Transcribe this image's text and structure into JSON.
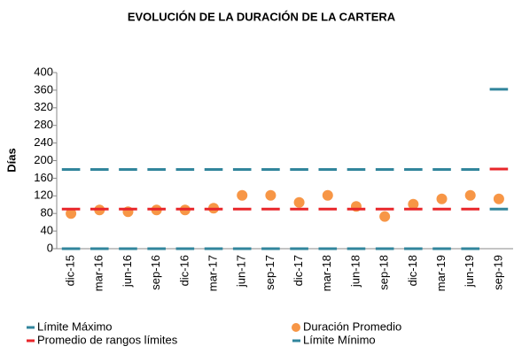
{
  "chart_data": {
    "type": "line",
    "title": "EVOLUCIÓN DE LA DURACIÓN DE LA CARTERA",
    "y_label": "Días",
    "categories": [
      "dic-15",
      "mar-16",
      "jun-16",
      "sep-16",
      "dic-16",
      "mar-17",
      "jun-17",
      "sep-17",
      "dic-17",
      "mar-18",
      "jun-18",
      "sep-18",
      "dic-18",
      "mar-19",
      "jun-19",
      "sep-19"
    ],
    "series": [
      {
        "name": "Límite Máximo",
        "color": "#31859c",
        "marker": "dash",
        "values": [
          180,
          180,
          180,
          180,
          180,
          180,
          180,
          180,
          180,
          180,
          180,
          180,
          180,
          180,
          180,
          362
        ]
      },
      {
        "name": "Duración Promedio",
        "color": "#f79646",
        "marker": "circle",
        "values": [
          80,
          88,
          84,
          88,
          88,
          92,
          121,
          121,
          105,
          121,
          96,
          73,
          101,
          113,
          121,
          113
        ]
      },
      {
        "name": "Promedio de rangos límites",
        "color": "#e8262a",
        "marker": "dash",
        "values": [
          90,
          90,
          90,
          90,
          90,
          90,
          90,
          90,
          90,
          90,
          90,
          90,
          90,
          90,
          90,
          181
        ]
      },
      {
        "name": "Límite Mínimo",
        "color": "#31859c",
        "marker": "dash",
        "values": [
          0,
          0,
          0,
          0,
          0,
          0,
          0,
          0,
          0,
          0,
          0,
          0,
          0,
          0,
          0,
          90
        ]
      }
    ],
    "ylim": [
      0,
      400
    ],
    "yticks": [
      0,
      40,
      80,
      120,
      160,
      200,
      240,
      280,
      320,
      360,
      400
    ]
  }
}
